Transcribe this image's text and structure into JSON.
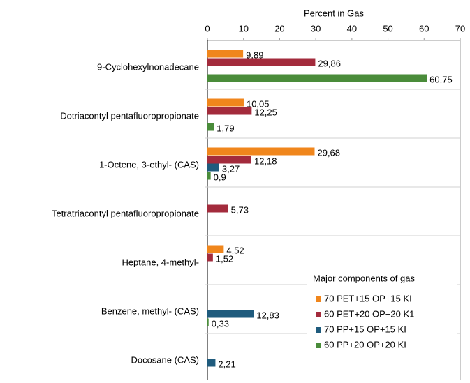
{
  "chart_data": {
    "type": "bar",
    "orientation": "horizontal",
    "x_label": "Percent in Gas",
    "legend_title": "Major components of gas",
    "categories": [
      "9-Cyclohexylnonadecane",
      "Dotriacontyl pentafluoropropionate",
      "1-Octene, 3-ethyl- (CAS)",
      "Tetratriacontyl pentafluoropropionate",
      "Heptane, 4-methyl-",
      "Benzene, methyl- (CAS)",
      "Docosane (CAS)"
    ],
    "series": [
      {
        "name": "70 PET+15 OP+15 KI",
        "color": "#f0861c",
        "values": [
          9.89,
          10.05,
          29.68,
          null,
          4.52,
          null,
          null
        ],
        "value_labels": [
          "9,89",
          "10,05",
          "29,68",
          null,
          "4,52",
          null,
          null
        ]
      },
      {
        "name": "60 PET+20 OP+20 K1",
        "color": "#a32b3c",
        "values": [
          29.86,
          12.25,
          12.18,
          5.73,
          1.52,
          null,
          null
        ],
        "value_labels": [
          "29,86",
          "12,25",
          "12,18",
          "5,73",
          "1,52",
          null,
          null
        ]
      },
      {
        "name": "70 PP+15 OP+15 KI",
        "color": "#1f5b7d",
        "values": [
          null,
          null,
          3.27,
          null,
          null,
          12.83,
          2.21
        ],
        "value_labels": [
          null,
          null,
          "3,27",
          null,
          null,
          "12,83",
          "2,21"
        ]
      },
      {
        "name": "60 PP+20 OP+20 KI",
        "color": "#4a8c3a",
        "values": [
          60.75,
          1.79,
          0.9,
          null,
          null,
          0.33,
          null
        ],
        "value_labels": [
          "60,75",
          "1,79",
          "0,9",
          null,
          null,
          "0,33",
          null
        ]
      }
    ],
    "xlim": [
      0,
      70
    ],
    "xticks": [
      0,
      10,
      20,
      30,
      40,
      50,
      60,
      70
    ],
    "legend": "lower right"
  }
}
